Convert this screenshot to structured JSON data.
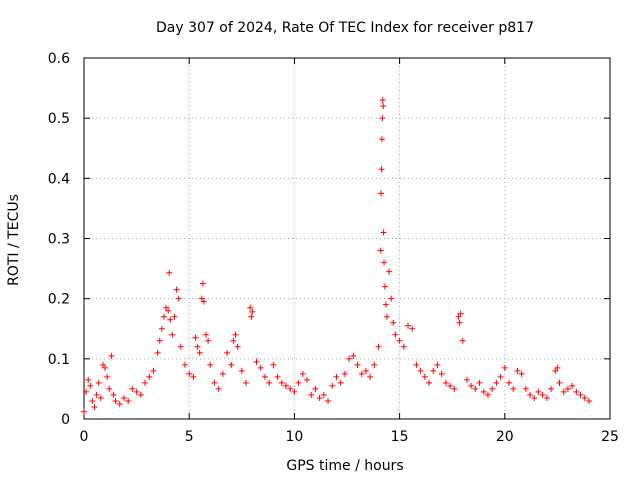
{
  "chart_data": {
    "type": "scatter",
    "marker": "plus",
    "title": "Day 307 of 2024, Rate Of TEC Index for receiver p817",
    "xlabel": "GPS time / hours",
    "ylabel": "ROTI / TECUs",
    "xlim": [
      0,
      25
    ],
    "ylim": [
      0,
      0.6
    ],
    "xticks": [
      0,
      5,
      10,
      15,
      20,
      25
    ],
    "yticks": [
      0,
      0.1,
      0.2,
      0.3,
      0.4,
      0.5,
      0.6
    ],
    "xtick_labels": [
      "0",
      "5",
      "10",
      "15",
      "20",
      "25"
    ],
    "ytick_labels": [
      "0",
      "0.1",
      "0.2",
      "0.3",
      "0.4",
      "0.5",
      "0.6"
    ],
    "grid": true,
    "series_color": "#ff0000",
    "series": [
      {
        "name": "ROTI",
        "points": [
          [
            0.0,
            0.012
          ],
          [
            0.1,
            0.045
          ],
          [
            0.2,
            0.065
          ],
          [
            0.3,
            0.055
          ],
          [
            0.4,
            0.03
          ],
          [
            0.5,
            0.02
          ],
          [
            0.6,
            0.04
          ],
          [
            0.7,
            0.06
          ],
          [
            0.8,
            0.035
          ],
          [
            0.9,
            0.09
          ],
          [
            1.0,
            0.085
          ],
          [
            1.1,
            0.07
          ],
          [
            1.2,
            0.05
          ],
          [
            1.3,
            0.105
          ],
          [
            1.4,
            0.04
          ],
          [
            1.5,
            0.03
          ],
          [
            1.7,
            0.025
          ],
          [
            1.9,
            0.035
          ],
          [
            2.1,
            0.03
          ],
          [
            2.3,
            0.05
          ],
          [
            2.5,
            0.045
          ],
          [
            2.7,
            0.04
          ],
          [
            2.9,
            0.06
          ],
          [
            3.1,
            0.07
          ],
          [
            3.3,
            0.08
          ],
          [
            3.5,
            0.11
          ],
          [
            3.6,
            0.13
          ],
          [
            3.7,
            0.15
          ],
          [
            3.8,
            0.17
          ],
          [
            3.9,
            0.185
          ],
          [
            4.0,
            0.18
          ],
          [
            4.05,
            0.243
          ],
          [
            4.1,
            0.165
          ],
          [
            4.2,
            0.14
          ],
          [
            4.3,
            0.17
          ],
          [
            4.4,
            0.215
          ],
          [
            4.5,
            0.2
          ],
          [
            4.6,
            0.12
          ],
          [
            4.8,
            0.09
          ],
          [
            5.0,
            0.075
          ],
          [
            5.2,
            0.07
          ],
          [
            5.3,
            0.135
          ],
          [
            5.4,
            0.12
          ],
          [
            5.5,
            0.11
          ],
          [
            5.6,
            0.2
          ],
          [
            5.65,
            0.225
          ],
          [
            5.7,
            0.195
          ],
          [
            5.8,
            0.14
          ],
          [
            5.9,
            0.13
          ],
          [
            6.0,
            0.09
          ],
          [
            6.2,
            0.06
          ],
          [
            6.4,
            0.05
          ],
          [
            6.6,
            0.075
          ],
          [
            6.8,
            0.11
          ],
          [
            7.0,
            0.09
          ],
          [
            7.1,
            0.13
          ],
          [
            7.2,
            0.14
          ],
          [
            7.3,
            0.12
          ],
          [
            7.5,
            0.08
          ],
          [
            7.7,
            0.06
          ],
          [
            7.9,
            0.185
          ],
          [
            7.95,
            0.17
          ],
          [
            8.0,
            0.178
          ],
          [
            8.2,
            0.095
          ],
          [
            8.4,
            0.085
          ],
          [
            8.6,
            0.07
          ],
          [
            8.8,
            0.06
          ],
          [
            9.0,
            0.09
          ],
          [
            9.2,
            0.07
          ],
          [
            9.4,
            0.06
          ],
          [
            9.6,
            0.055
          ],
          [
            9.8,
            0.05
          ],
          [
            10.0,
            0.045
          ],
          [
            10.2,
            0.06
          ],
          [
            10.4,
            0.075
          ],
          [
            10.6,
            0.065
          ],
          [
            10.8,
            0.04
          ],
          [
            11.0,
            0.05
          ],
          [
            11.2,
            0.035
          ],
          [
            11.4,
            0.04
          ],
          [
            11.6,
            0.03
          ],
          [
            11.8,
            0.055
          ],
          [
            12.0,
            0.07
          ],
          [
            12.2,
            0.06
          ],
          [
            12.4,
            0.075
          ],
          [
            12.6,
            0.1
          ],
          [
            12.8,
            0.105
          ],
          [
            13.0,
            0.09
          ],
          [
            13.2,
            0.075
          ],
          [
            13.4,
            0.08
          ],
          [
            13.6,
            0.07
          ],
          [
            13.8,
            0.09
          ],
          [
            14.0,
            0.12
          ],
          [
            14.1,
            0.28
          ],
          [
            14.12,
            0.375
          ],
          [
            14.14,
            0.415
          ],
          [
            14.16,
            0.465
          ],
          [
            14.18,
            0.5
          ],
          [
            14.2,
            0.53
          ],
          [
            14.22,
            0.52
          ],
          [
            14.24,
            0.31
          ],
          [
            14.26,
            0.26
          ],
          [
            14.3,
            0.22
          ],
          [
            14.35,
            0.19
          ],
          [
            14.4,
            0.17
          ],
          [
            14.5,
            0.245
          ],
          [
            14.6,
            0.2
          ],
          [
            14.7,
            0.16
          ],
          [
            14.8,
            0.14
          ],
          [
            15.0,
            0.13
          ],
          [
            15.2,
            0.12
          ],
          [
            15.4,
            0.155
          ],
          [
            15.6,
            0.15
          ],
          [
            15.8,
            0.09
          ],
          [
            16.0,
            0.08
          ],
          [
            16.2,
            0.07
          ],
          [
            16.4,
            0.06
          ],
          [
            16.6,
            0.08
          ],
          [
            16.8,
            0.09
          ],
          [
            17.0,
            0.075
          ],
          [
            17.2,
            0.06
          ],
          [
            17.4,
            0.055
          ],
          [
            17.6,
            0.05
          ],
          [
            17.8,
            0.17
          ],
          [
            17.85,
            0.16
          ],
          [
            17.9,
            0.175
          ],
          [
            18.0,
            0.13
          ],
          [
            18.2,
            0.065
          ],
          [
            18.4,
            0.055
          ],
          [
            18.6,
            0.05
          ],
          [
            18.8,
            0.06
          ],
          [
            19.0,
            0.045
          ],
          [
            19.2,
            0.04
          ],
          [
            19.4,
            0.05
          ],
          [
            19.6,
            0.06
          ],
          [
            19.8,
            0.07
          ],
          [
            20.0,
            0.085
          ],
          [
            20.2,
            0.06
          ],
          [
            20.4,
            0.05
          ],
          [
            20.6,
            0.08
          ],
          [
            20.8,
            0.075
          ],
          [
            21.0,
            0.05
          ],
          [
            21.2,
            0.04
          ],
          [
            21.4,
            0.035
          ],
          [
            21.6,
            0.045
          ],
          [
            21.8,
            0.04
          ],
          [
            22.0,
            0.035
          ],
          [
            22.2,
            0.05
          ],
          [
            22.4,
            0.08
          ],
          [
            22.5,
            0.085
          ],
          [
            22.6,
            0.06
          ],
          [
            22.8,
            0.045
          ],
          [
            23.0,
            0.05
          ],
          [
            23.2,
            0.055
          ],
          [
            23.4,
            0.045
          ],
          [
            23.6,
            0.04
          ],
          [
            23.8,
            0.035
          ],
          [
            24.0,
            0.03
          ]
        ]
      }
    ]
  }
}
